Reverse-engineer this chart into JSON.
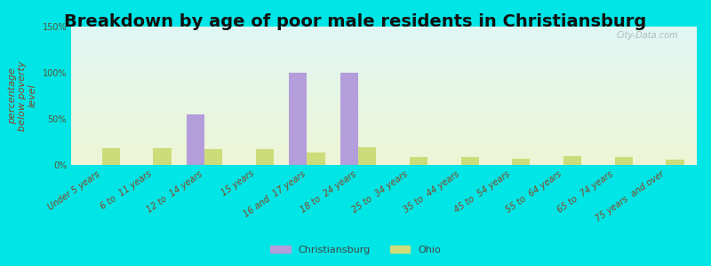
{
  "title": "Breakdown by age of poor male residents in Christiansburg",
  "ylabel": "percentage\nbelow poverty\nlevel",
  "categories": [
    "Under 5 years",
    "6 to  11 years",
    "12 to  14 years",
    "15 years",
    "16 and  17 years",
    "18 to  24 years",
    "25 to  34 years",
    "35 to  44 years",
    "45 to  54 years",
    "55 to  64 years",
    "65 to  74 years",
    "75 years  and over"
  ],
  "christiansburg": [
    0,
    0,
    55,
    0,
    100,
    100,
    0,
    0,
    0,
    0,
    0,
    0
  ],
  "ohio": [
    18,
    18,
    17,
    17,
    13,
    19,
    9,
    9,
    7,
    10,
    9,
    6
  ],
  "christiansburg_color": "#b39ddb",
  "ohio_color": "#cddc7a",
  "background_top": "#e0f7f7",
  "background_bottom": "#e8f5d0",
  "plot_bg_top": "#e0f7f4",
  "plot_bg_bottom": "#eef5d5",
  "outer_bg": "#00e5e5",
  "ylim": [
    0,
    150
  ],
  "yticks": [
    0,
    50,
    100,
    150
  ],
  "ytick_labels": [
    "0%",
    "50%",
    "100%",
    "150%"
  ],
  "bar_width": 0.35,
  "title_fontsize": 14,
  "axis_label_fontsize": 8,
  "tick_fontsize": 7,
  "legend_label_christiansburg": "Christiansburg",
  "legend_label_ohio": "Ohio",
  "watermark": "City-Data.com"
}
